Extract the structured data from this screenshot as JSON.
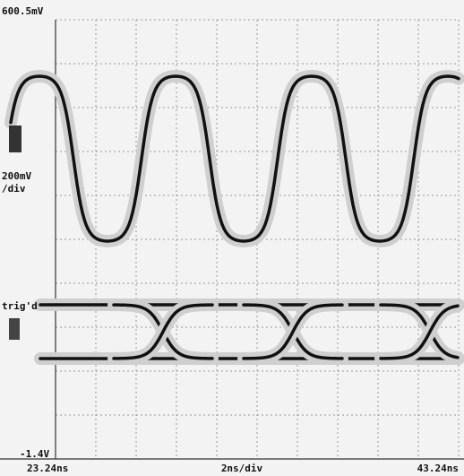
{
  "scope": {
    "top_voltage": "600.5mV",
    "volts_per_div": "200mV",
    "volts_per_div_unit": "/div",
    "trigger": "trig'd",
    "bottom_voltage": "-1.4V",
    "time_start": "23.24ns",
    "time_per_div": "2ns/div",
    "time_end": "43.24ns"
  }
}
